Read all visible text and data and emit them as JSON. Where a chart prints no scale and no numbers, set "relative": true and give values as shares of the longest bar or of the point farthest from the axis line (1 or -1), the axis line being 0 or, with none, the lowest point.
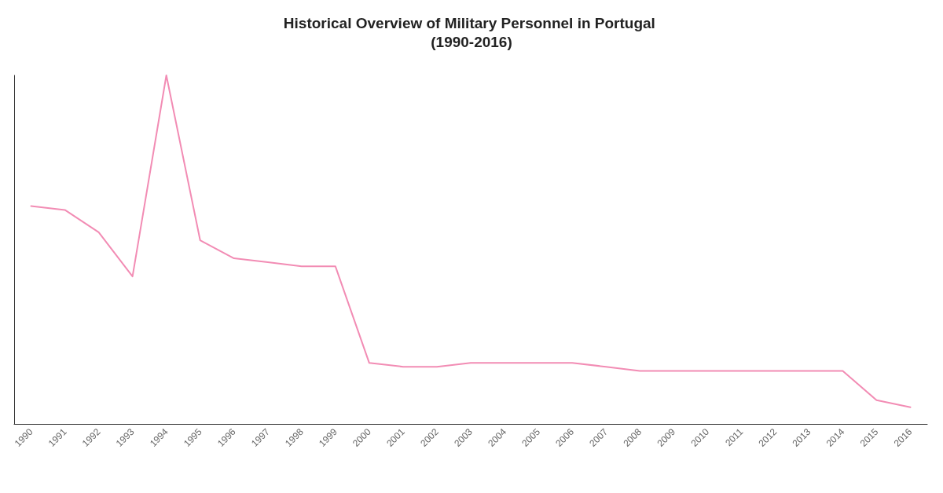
{
  "chart_data": {
    "type": "line",
    "title": "Historical Overview of Military Personnel in Portugal (1990-2016)",
    "categories": [
      "1990",
      "1991",
      "1992",
      "1993",
      "1994",
      "1995",
      "1996",
      "1997",
      "1998",
      "1999",
      "2000",
      "2001",
      "2002",
      "2003",
      "2004",
      "2005",
      "2006",
      "2007",
      "2008",
      "2009",
      "2010",
      "2011",
      "2012",
      "2013",
      "2014",
      "2015",
      "2016"
    ],
    "relative": true,
    "series": [
      {
        "color": "#f28cb4",
        "values": [
          0.625,
          0.614,
          0.55,
          0.423,
          1,
          0.527,
          0.475,
          0.464,
          0.452,
          0.452,
          0.175,
          0.164,
          0.164,
          0.175,
          0.175,
          0.175,
          0.175,
          0.164,
          0.152,
          0.152,
          0.152,
          0.152,
          0.152,
          0.152,
          0.152,
          0.068,
          0.048
        ]
      }
    ],
    "grid": false,
    "marker": "none",
    "line_style": "solid"
  }
}
